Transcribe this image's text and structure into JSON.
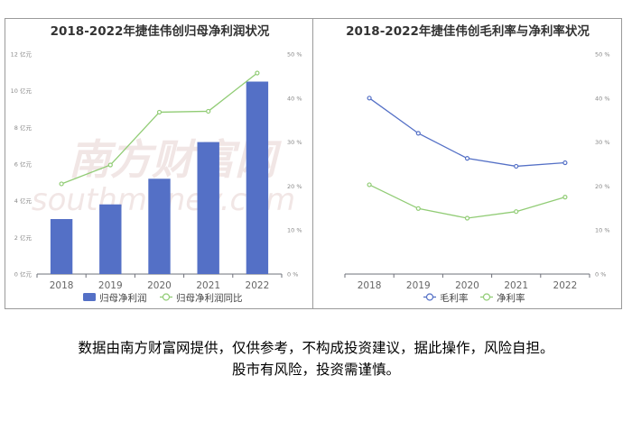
{
  "chart_data": [
    {
      "type": "bar",
      "title": "2018-2022年捷佳伟创归母净利润状况",
      "categories": [
        "2018",
        "2019",
        "2020",
        "2021",
        "2022"
      ],
      "series": [
        {
          "name": "归母净利润",
          "type": "bar",
          "axis": "left",
          "color": "#5470c6",
          "values": [
            3.0,
            3.8,
            5.2,
            7.2,
            10.5
          ]
        },
        {
          "name": "归母净利润同比",
          "type": "line",
          "axis": "right",
          "color": "#91cc75",
          "values": [
            20.5,
            24.8,
            36.8,
            37.0,
            45.7
          ]
        }
      ],
      "left_axis": {
        "ylim": [
          0,
          12
        ],
        "ticks": [
          0,
          2,
          4,
          6,
          8,
          10,
          12
        ],
        "tick_labels": [
          "0 亿元",
          "2 亿元",
          "4 亿元",
          "6 亿元",
          "8 亿元",
          "10 亿元",
          "12 亿元"
        ]
      },
      "right_axis": {
        "ylim": [
          0,
          50
        ],
        "ticks": [
          0,
          10,
          20,
          30,
          40,
          50
        ],
        "tick_labels": [
          "0 %",
          "10 %",
          "20 %",
          "30 %",
          "40 %",
          "50 %"
        ]
      },
      "legend_position": "bottom-center",
      "grid": false
    },
    {
      "type": "line",
      "title": "2018-2022年捷佳伟创毛利率与净利率状况",
      "categories": [
        "2018",
        "2019",
        "2020",
        "2021",
        "2022"
      ],
      "series": [
        {
          "name": "毛利率",
          "type": "line",
          "axis": "right",
          "color": "#5470c6",
          "values": [
            40.0,
            32.0,
            26.3,
            24.5,
            25.3
          ]
        },
        {
          "name": "净利率",
          "type": "line",
          "axis": "right",
          "color": "#91cc75",
          "values": [
            20.3,
            14.9,
            12.7,
            14.2,
            17.5
          ]
        }
      ],
      "right_axis": {
        "ylim": [
          0,
          50
        ],
        "ticks": [
          0,
          10,
          20,
          30,
          40,
          50
        ],
        "tick_labels": [
          "0 %",
          "10 %",
          "20 %",
          "30 %",
          "40 %",
          "50 %"
        ]
      },
      "legend_position": "bottom-center",
      "grid": false
    }
  ],
  "watermark": {
    "text_cn": "南方财富网",
    "text_en": "southmoney.com"
  },
  "disclaimer": {
    "line1": "数据由南方财富网提供，仅供参考，不构成投资建议，据此操作，风险自担。",
    "line2": "股市有风险，投资需谨慎。"
  }
}
